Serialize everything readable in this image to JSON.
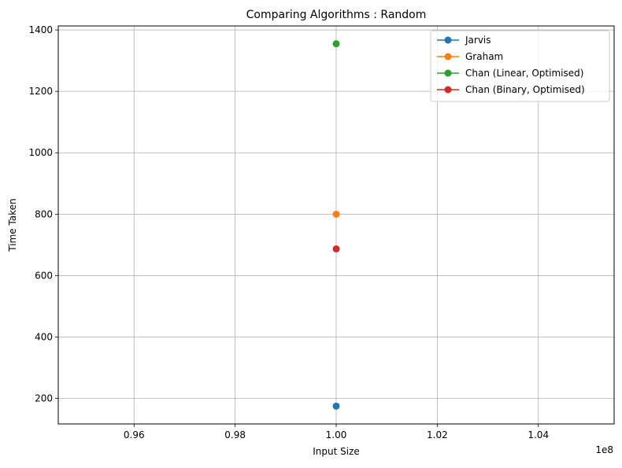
{
  "chart_data": {
    "type": "line",
    "title": "Comparing Algorithms : Random",
    "xlabel": "Input Size",
    "ylabel": "Time Taken",
    "x_offset_label": "1e8",
    "x": [
      100000000
    ],
    "xlim": [
      94500000,
      105500000
    ],
    "ylim": [
      117,
      1413
    ],
    "x_ticks": [
      96000000,
      98000000,
      100000000,
      102000000,
      104000000
    ],
    "x_tick_labels": [
      "0.96",
      "0.98",
      "1.00",
      "1.02",
      "1.04"
    ],
    "y_ticks": [
      200,
      400,
      600,
      800,
      1000,
      1200,
      1400
    ],
    "y_tick_labels": [
      "200",
      "400",
      "600",
      "800",
      "1000",
      "1200",
      "1400"
    ],
    "grid": true,
    "legend_position": "top-right",
    "series": [
      {
        "name": "Jarvis",
        "color": "#1f77b4",
        "values": [
          175
        ]
      },
      {
        "name": "Graham",
        "color": "#ff7f0e",
        "values": [
          800
        ]
      },
      {
        "name": "Chan (Linear, Optimised)",
        "color": "#2ca02c",
        "values": [
          1355
        ]
      },
      {
        "name": "Chan (Binary, Optimised)",
        "color": "#d62728",
        "values": [
          687
        ]
      }
    ]
  }
}
